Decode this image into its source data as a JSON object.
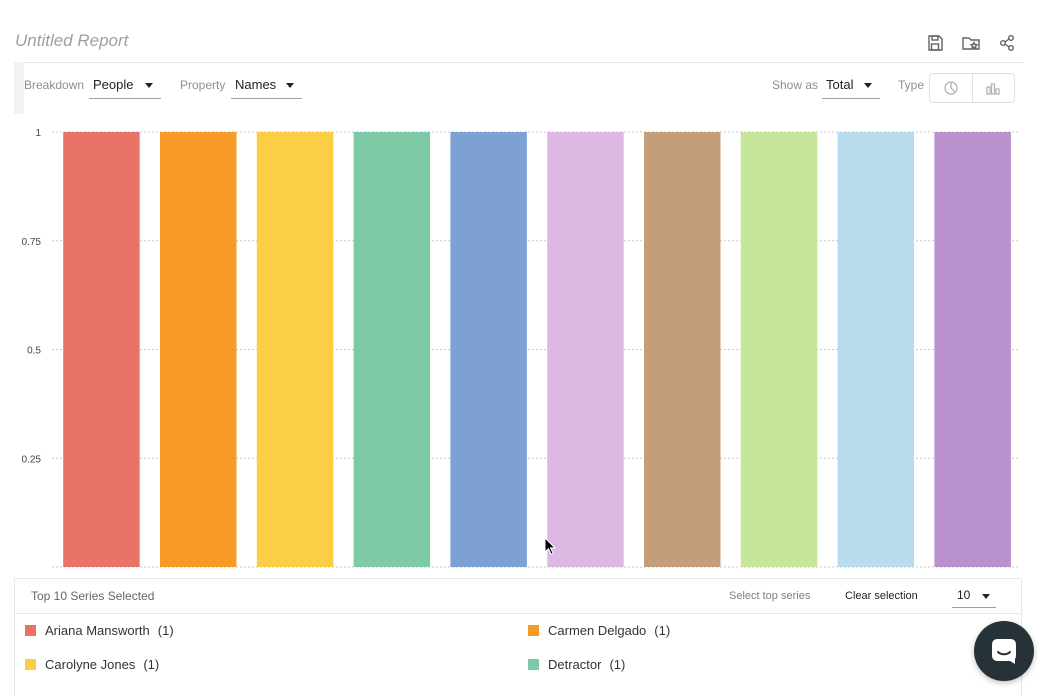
{
  "report": {
    "title": "Untitled Report",
    "icons": [
      "save-icon",
      "folder-star-icon",
      "share-icon"
    ]
  },
  "toolbar": {
    "breakdown_label": "Breakdown",
    "breakdown_value": "People",
    "property_label": "Property",
    "property_value": "Names",
    "show_as_label": "Show as",
    "show_as_value": "Total",
    "type_label": "Type",
    "type_options": [
      "pie-chart-icon",
      "bar-chart-icon"
    ]
  },
  "chart_data": {
    "type": "bar",
    "categories": [
      "Ariana Mansworth",
      "Carmen Delgado",
      "Carolyne Jones",
      "Detractor",
      "",
      "",
      "",
      "",
      "",
      ""
    ],
    "values": [
      1,
      1,
      1,
      1,
      1,
      1,
      1,
      1,
      1,
      1
    ],
    "colors": [
      "#ea7367",
      "#f79a26",
      "#fcce45",
      "#7ecaa6",
      "#7ea1d4",
      "#dcb8e2",
      "#c49d7b",
      "#c6e69b",
      "#b9dcec",
      "#b992cd"
    ],
    "ylim": [
      0,
      1
    ],
    "y_ticks": [
      0.25,
      0.5,
      0.75,
      1
    ],
    "y_tick_labels": [
      "0.25",
      "0.5",
      "0.75",
      "1"
    ],
    "grid": true
  },
  "legend": {
    "header": "Top 10 Series Selected",
    "select_top_label": "Select top series",
    "clear_label": "Clear selection",
    "top_n": "10",
    "items": [
      {
        "name": "Ariana Mansworth",
        "count": "(1)",
        "color": "#ea7367"
      },
      {
        "name": "Carmen Delgado",
        "count": "(1)",
        "color": "#f79a26"
      },
      {
        "name": "Carolyne Jones",
        "count": "(1)",
        "color": "#fcce45"
      },
      {
        "name": "Detractor",
        "count": "(1)",
        "color": "#7ecaa6"
      }
    ]
  },
  "messenger": {
    "icon": "chat-icon"
  }
}
